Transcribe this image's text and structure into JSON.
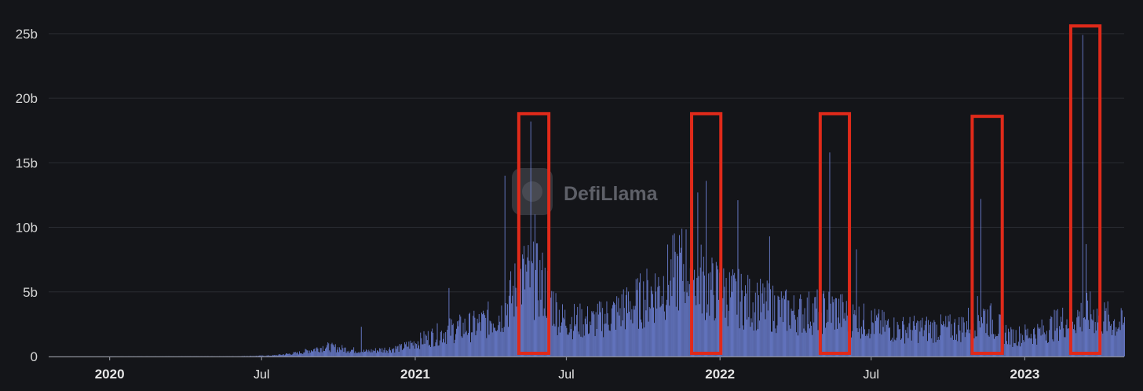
{
  "chart_data": {
    "type": "bar",
    "watermark": "DefiLlama",
    "colors": {
      "bar": "#6f83d9",
      "highlight": "#e02a1a"
    },
    "grid": true,
    "legend": "none",
    "x_domain": [
      "2019-10-20",
      "2023-04-30"
    ],
    "ylim": [
      0,
      27000000000
    ],
    "y_ticks": [
      {
        "value": 0,
        "label": "0"
      },
      {
        "value": 5000000000,
        "label": "5b"
      },
      {
        "value": 10000000000,
        "label": "10b"
      },
      {
        "value": 15000000000,
        "label": "15b"
      },
      {
        "value": 20000000000,
        "label": "20b"
      },
      {
        "value": 25000000000,
        "label": "25b"
      }
    ],
    "x_ticks": [
      {
        "date": "2020-01-01",
        "label": "2020",
        "major": true
      },
      {
        "date": "2020-07-01",
        "label": "Jul",
        "major": false
      },
      {
        "date": "2021-01-01",
        "label": "2021",
        "major": true
      },
      {
        "date": "2021-07-01",
        "label": "Jul",
        "major": false
      },
      {
        "date": "2022-01-01",
        "label": "2022",
        "major": true
      },
      {
        "date": "2022-07-01",
        "label": "Jul",
        "major": false
      },
      {
        "date": "2023-01-01",
        "label": "2023",
        "major": true
      }
    ],
    "trend": [
      {
        "x": "2019-10-20",
        "y": 0
      },
      {
        "x": "2020-06-01",
        "y": 10000000
      },
      {
        "x": "2020-07-15",
        "y": 80000000
      },
      {
        "x": "2020-08-15",
        "y": 300000000
      },
      {
        "x": "2020-09-15",
        "y": 800000000
      },
      {
        "x": "2020-11-01",
        "y": 400000000
      },
      {
        "x": "2020-12-15",
        "y": 700000000
      },
      {
        "x": "2021-01-15",
        "y": 1500000000
      },
      {
        "x": "2021-02-15",
        "y": 2200000000
      },
      {
        "x": "2021-03-15",
        "y": 2500000000
      },
      {
        "x": "2021-04-15",
        "y": 3500000000
      },
      {
        "x": "2021-05-10",
        "y": 6500000000
      },
      {
        "x": "2021-06-01",
        "y": 6000000000
      },
      {
        "x": "2021-06-25",
        "y": 3000000000
      },
      {
        "x": "2021-08-01",
        "y": 2800000000
      },
      {
        "x": "2021-09-15",
        "y": 4000000000
      },
      {
        "x": "2021-10-20",
        "y": 5500000000
      },
      {
        "x": "2021-11-20",
        "y": 7500000000
      },
      {
        "x": "2021-12-20",
        "y": 5500000000
      },
      {
        "x": "2022-02-01",
        "y": 4500000000
      },
      {
        "x": "2022-04-01",
        "y": 3500000000
      },
      {
        "x": "2022-05-15",
        "y": 3800000000
      },
      {
        "x": "2022-06-15",
        "y": 3000000000
      },
      {
        "x": "2022-08-01",
        "y": 2200000000
      },
      {
        "x": "2022-10-15",
        "y": 2300000000
      },
      {
        "x": "2022-11-10",
        "y": 3500000000
      },
      {
        "x": "2022-12-15",
        "y": 1600000000
      },
      {
        "x": "2023-01-20",
        "y": 2000000000
      },
      {
        "x": "2023-02-20",
        "y": 3000000000
      },
      {
        "x": "2023-03-20",
        "y": 3500000000
      },
      {
        "x": "2023-04-30",
        "y": 2500000000
      }
    ],
    "spikes": [
      {
        "x": "2020-10-28",
        "y": 2300000000
      },
      {
        "x": "2021-02-10",
        "y": 5300000000
      },
      {
        "x": "2021-04-18",
        "y": 14000000000
      },
      {
        "x": "2021-05-19",
        "y": 18200000000
      },
      {
        "x": "2021-05-24",
        "y": 11000000000
      },
      {
        "x": "2021-09-07",
        "y": 5200000000
      },
      {
        "x": "2021-11-08",
        "y": 8100000000
      },
      {
        "x": "2021-12-05",
        "y": 12700000000
      },
      {
        "x": "2021-12-15",
        "y": 13600000000
      },
      {
        "x": "2022-01-22",
        "y": 12100000000
      },
      {
        "x": "2022-03-01",
        "y": 9300000000
      },
      {
        "x": "2022-05-12",
        "y": 15800000000
      },
      {
        "x": "2022-06-13",
        "y": 8300000000
      },
      {
        "x": "2022-11-09",
        "y": 12200000000
      },
      {
        "x": "2023-03-11",
        "y": 24900000000
      },
      {
        "x": "2023-03-15",
        "y": 8700000000
      }
    ],
    "highlight_ranges": [
      {
        "from": "2021-05-05",
        "to": "2021-06-10",
        "ymax": 18800000000
      },
      {
        "from": "2021-11-28",
        "to": "2022-01-02",
        "ymax": 18800000000
      },
      {
        "from": "2022-05-01",
        "to": "2022-06-05",
        "ymax": 18800000000
      },
      {
        "from": "2022-10-30",
        "to": "2022-12-05",
        "ymax": 18600000000
      },
      {
        "from": "2023-02-25",
        "to": "2023-04-01",
        "ymax": 25600000000
      }
    ]
  }
}
